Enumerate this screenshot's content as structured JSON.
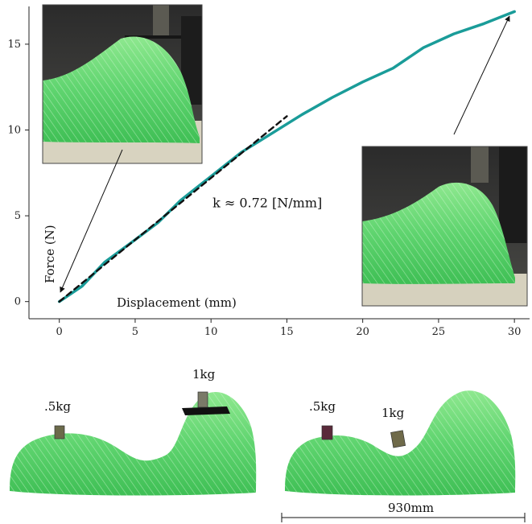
{
  "chart_data": {
    "type": "line",
    "xlabel": "Displacement (mm)",
    "ylabel": "Force (N)",
    "xlim": [
      -2,
      31
    ],
    "ylim": [
      -1,
      17.2
    ],
    "xticks": [
      0,
      5,
      10,
      15,
      20,
      25,
      30
    ],
    "yticks": [
      0,
      5,
      10,
      15
    ],
    "series": [
      {
        "style": "solid",
        "color": "#1a9c99",
        "x": [
          0,
          1.5,
          3,
          5,
          6.5,
          8,
          10,
          12,
          14,
          16,
          18,
          20,
          22,
          24,
          26,
          28,
          30
        ],
        "y": [
          0,
          0.9,
          2.3,
          3.6,
          4.6,
          5.9,
          7.3,
          8.7,
          9.8,
          10.9,
          11.9,
          12.8,
          13.6,
          14.8,
          15.6,
          16.2,
          16.9
        ]
      },
      {
        "style": "dashed",
        "color": "#111111",
        "x": [
          0,
          15
        ],
        "y": [
          0,
          10.8
        ]
      }
    ],
    "annotations": [
      {
        "text": "k ≈ 0.72 [N/mm]",
        "x": 10.1,
        "y": 5.5
      }
    ]
  },
  "photos": {
    "inset_left": "photo-of-green-tube-structure-before-loading",
    "inset_right": "photo-of-green-tube-structure-compressed",
    "bottom_left": "photo-of-green-shape-with-weights",
    "bottom_right": "photo-of-green-shape-with-weights-alternate"
  },
  "bottom": {
    "left_weight_small": ".5kg",
    "left_weight_large": "1kg",
    "right_weight_small": ".5kg",
    "right_weight_large": "1kg",
    "dimension_label": "930mm"
  },
  "colors": {
    "curve": "#1a9c99",
    "green_material": "#5fd46f",
    "inset_background": "#2a2a2a"
  }
}
